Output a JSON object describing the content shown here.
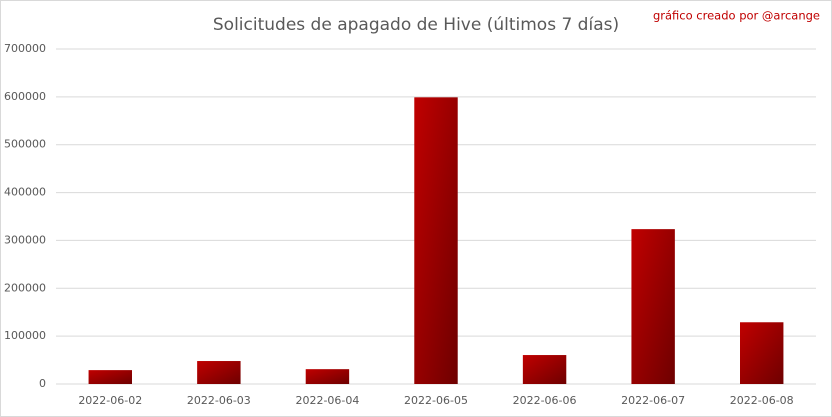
{
  "chart_data": {
    "type": "bar",
    "title": "Solicitudes de apagado de Hive (últimos 7 días)",
    "annotation": "gráfico creado por @arcange",
    "categories": [
      "2022-06-02",
      "2022-06-03",
      "2022-06-04",
      "2022-06-05",
      "2022-06-06",
      "2022-06-07",
      "2022-06-08"
    ],
    "values": [
      29000,
      48000,
      31000,
      599000,
      60500,
      323600,
      129000
    ],
    "color": "#c00000",
    "ylim": [
      0,
      700000
    ],
    "yticks": [
      0,
      100000,
      200000,
      300000,
      400000,
      500000,
      600000,
      700000
    ],
    "grid": true
  }
}
